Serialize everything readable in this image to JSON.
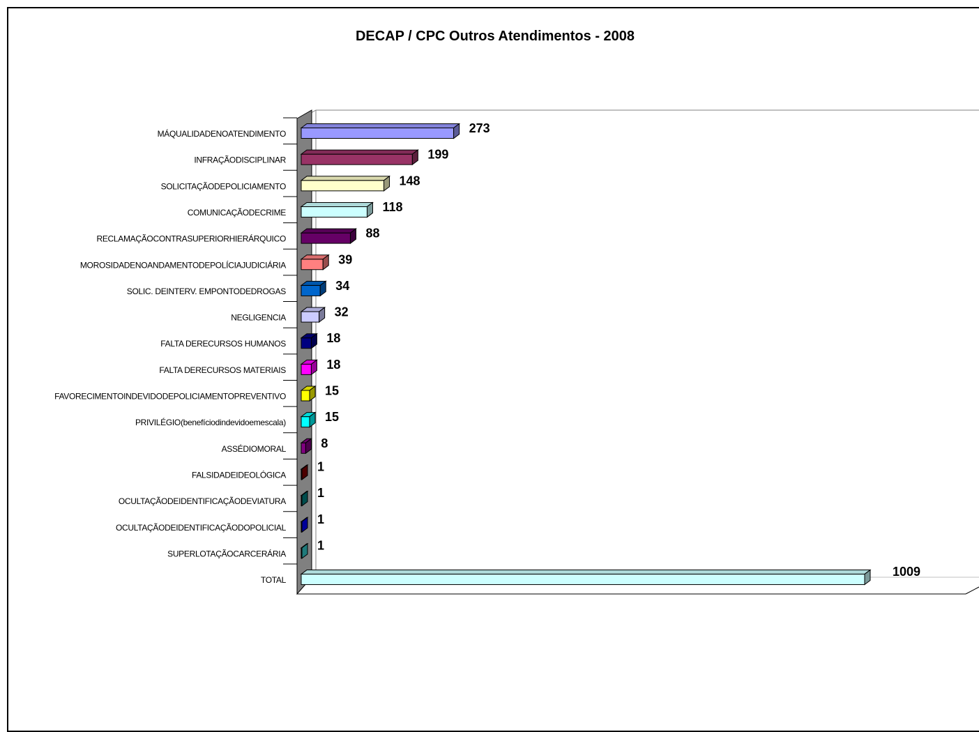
{
  "chart_data": {
    "type": "bar",
    "orientation": "horizontal",
    "three_d": true,
    "title": "DECAP / CPC Outros Atendimentos - 2008",
    "xlabel": "",
    "ylabel": "",
    "xlim": [
      0,
      1200
    ],
    "grid": false,
    "legend": "none",
    "categories": [
      "MÁQUALIDADENOATENDIMENTO",
      "INFRAÇÃODISCIPLINAR",
      "SOLICITAÇÃODEPOLICIAMENTO",
      "COMUNICAÇÃODECRIME",
      "RECLAMAÇÃOCONTRASUPERIORHIERÁRQUICO",
      "MOROSIDADENOANDAMENTODEPOLÍCIAJUDICIÁRIA",
      "SOLIC. DEINTERV. EMPONTODEDROGAS",
      "NEGLIGENCIA",
      "FALTA DERECURSOS HUMANOS",
      "FALTA DERECURSOS MATERIAIS",
      "FAVORECIMENTOINDEVIDODEPOLICIAMENTOPREVENTIVO",
      "PRIVILÉGIO(benefíciodindevidoemescala)",
      "ASSÉDIOMORAL",
      "FALSIDADEIDEOLÓGICA",
      "OCULTAÇÃODEIDENTIFICAÇÃODEVIATURA",
      "OCULTAÇÃODEIDENTIFICAÇÃODOPOLICIAL",
      "SUPERLOTAÇÃOCARCERÁRIA",
      "TOTAL"
    ],
    "values": [
      273,
      199,
      148,
      118,
      88,
      39,
      34,
      32,
      18,
      18,
      15,
      15,
      8,
      1,
      1,
      1,
      1,
      1009
    ],
    "colors": [
      "#9999FF",
      "#993366",
      "#FFFFCC",
      "#CCFFFF",
      "#660066",
      "#FF8080",
      "#0066CC",
      "#CCCCFF",
      "#000080",
      "#FF00FF",
      "#FFFF00",
      "#00FFFF",
      "#800080",
      "#800000",
      "#008080",
      "#0000FF",
      "#33CCCC",
      "#CCFFFF"
    ]
  }
}
